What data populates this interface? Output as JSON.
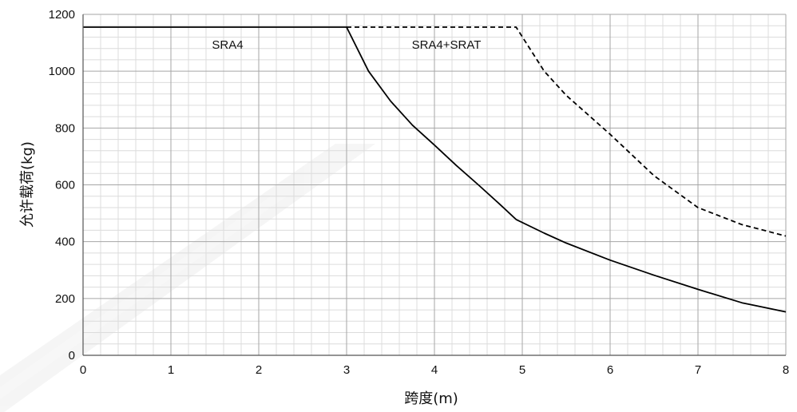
{
  "chart_data": {
    "type": "line",
    "xlabel": "跨度(m)",
    "ylabel": "允许载荷(kg)",
    "xlim": [
      0,
      8
    ],
    "ylim": [
      0,
      1200
    ],
    "x_ticks": [
      "0",
      "1",
      "2",
      "3",
      "4",
      "5",
      "6",
      "7",
      "8"
    ],
    "y_ticks": [
      "0",
      "200",
      "400",
      "600",
      "800",
      "1000",
      "1200"
    ],
    "grid": true,
    "annotations": [
      "SRA4",
      "SRA4+SRAT"
    ],
    "series": [
      {
        "style": "solid",
        "color": "#000000",
        "x": [
          0,
          3.0,
          3.25,
          3.5,
          3.75,
          4.0,
          4.25,
          4.5,
          4.75,
          4.93,
          5.25,
          5.5,
          6.0,
          6.5,
          7.0,
          7.5,
          8.0
        ],
        "y": [
          1155,
          1155,
          1000,
          895,
          810,
          740,
          668,
          600,
          530,
          478,
          430,
          395,
          335,
          282,
          232,
          185,
          153
        ]
      },
      {
        "style": "dashed",
        "color": "#000000",
        "x": [
          3.0,
          4.93,
          5.25,
          5.5,
          6.0,
          6.5,
          7.0,
          7.5,
          8.0
        ],
        "y": [
          1155,
          1155,
          1000,
          915,
          778,
          632,
          520,
          460,
          420
        ]
      }
    ]
  }
}
